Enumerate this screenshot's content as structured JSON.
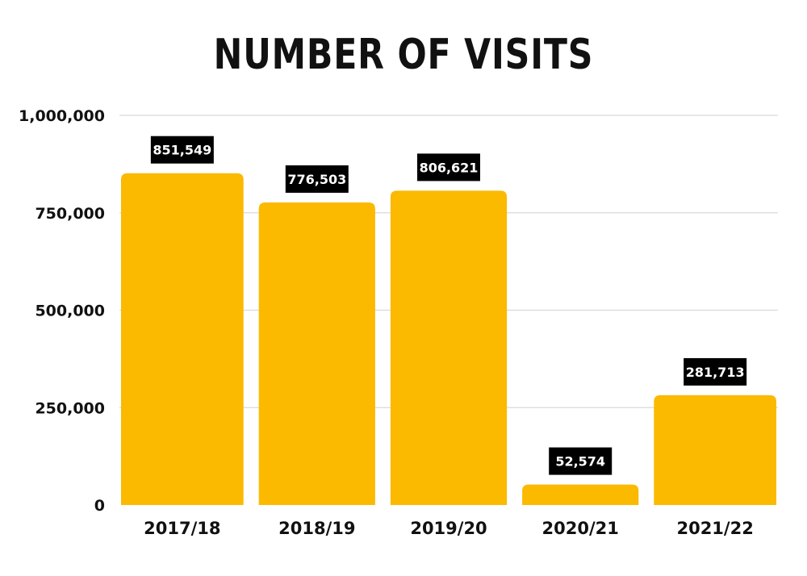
{
  "chart_data": {
    "type": "bar",
    "title": "NUMBER OF VISITS",
    "categories": [
      "2017/18",
      "2018/19",
      "2019/20",
      "2020/21",
      "2021/22"
    ],
    "values": [
      851549,
      776503,
      806621,
      52574,
      281713
    ],
    "data_labels": [
      "851,549",
      "776,503",
      "806,621",
      "52,574",
      "281,713"
    ],
    "yticks": [
      0,
      250000,
      500000,
      750000,
      1000000
    ],
    "ytick_labels": [
      "0",
      "250,000",
      "500,000",
      "750,000",
      "1,000,000"
    ],
    "ylim": [
      0,
      1000000
    ],
    "xlabel": "",
    "ylabel": "",
    "grid": true,
    "legend": "none",
    "colors": {
      "bar": "#FBB900",
      "label_bg": "#000000",
      "label_text": "#ffffff",
      "grid": "#d9d9d9",
      "text": "#111111"
    }
  }
}
